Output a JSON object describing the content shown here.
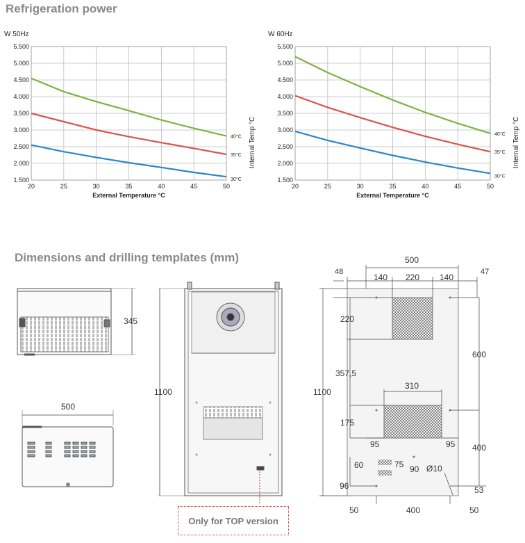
{
  "sections": {
    "refrigeration_title": "Refrigeration power",
    "dimensions_title": "Dimensions and drilling templates (mm)"
  },
  "chart_data": [
    {
      "type": "line",
      "title": "",
      "unit_label": "W  50Hz",
      "xlabel": "External Temperature °C",
      "ylabel": "Internal Temp °C",
      "xlim": [
        20,
        50
      ],
      "ylim": [
        1500,
        5500
      ],
      "x_ticks": [
        "20",
        "25",
        "30",
        "35",
        "40",
        "45",
        "50"
      ],
      "y_ticks": [
        "1.500",
        "2.000",
        "2.500",
        "3.000",
        "3.500",
        "4.000",
        "4.500",
        "5.000",
        "5.500"
      ],
      "series": [
        {
          "name": "40°C",
          "color": "#7cb342",
          "x": [
            20,
            25,
            30,
            35,
            40,
            45,
            50
          ],
          "y": [
            4550,
            4150,
            3850,
            3580,
            3300,
            3050,
            2820
          ]
        },
        {
          "name": "35°C",
          "color": "#d9534f",
          "x": [
            20,
            25,
            30,
            35,
            40,
            45,
            50
          ],
          "y": [
            3500,
            3250,
            3000,
            2800,
            2620,
            2450,
            2270
          ]
        },
        {
          "name": "30°C",
          "color": "#2a86c8",
          "x": [
            20,
            25,
            30,
            35,
            40,
            45,
            50
          ],
          "y": [
            2550,
            2350,
            2180,
            2020,
            1880,
            1730,
            1600
          ]
        }
      ]
    },
    {
      "type": "line",
      "title": "",
      "unit_label": "W  60Hz",
      "xlabel": "External Temperature °C",
      "ylabel": "Internal Temp °C",
      "xlim": [
        20,
        50
      ],
      "ylim": [
        1500,
        5500
      ],
      "x_ticks": [
        "20",
        "25",
        "30",
        "35",
        "40",
        "45",
        "50"
      ],
      "y_ticks": [
        "1.500",
        "2.000",
        "2.500",
        "3.000",
        "3.500",
        "4.000",
        "4.500",
        "5.000",
        "5.500"
      ],
      "series": [
        {
          "name": "40°C",
          "color": "#7cb342",
          "x": [
            20,
            25,
            30,
            35,
            40,
            45,
            50
          ],
          "y": [
            5200,
            4720,
            4300,
            3900,
            3530,
            3200,
            2900
          ]
        },
        {
          "name": "35°C",
          "color": "#d9534f",
          "x": [
            20,
            25,
            30,
            35,
            40,
            45,
            50
          ],
          "y": [
            4030,
            3680,
            3370,
            3080,
            2810,
            2570,
            2350
          ]
        },
        {
          "name": "30°C",
          "color": "#2a86c8",
          "x": [
            20,
            25,
            30,
            35,
            40,
            45,
            50
          ],
          "y": [
            2960,
            2690,
            2460,
            2240,
            2040,
            1860,
            1700
          ]
        }
      ]
    }
  ],
  "dimensions": {
    "side_depth": "345",
    "bottom_width": "500",
    "front_height": "1100",
    "template_height": "1100",
    "template_width": "500",
    "spacing_top": [
      "140",
      "220",
      "140"
    ],
    "left_offset": "48",
    "right_offset": "47",
    "upper_cutout_height": "220",
    "mid_spacing": "357,5",
    "right_600": "600",
    "lower_cutout_width": "310",
    "lower_cutout_height": "175",
    "lower_left_95": "95",
    "lower_right_95": "95",
    "right_400": "400",
    "small_60": "60",
    "small_75": "75",
    "small_90": "90",
    "hole_diameter": "Ø10",
    "left_96": "96",
    "right_53": "53",
    "bottom_50_left": "50",
    "bottom_400": "400",
    "bottom_50_right": "50"
  },
  "note": "Only for TOP version"
}
